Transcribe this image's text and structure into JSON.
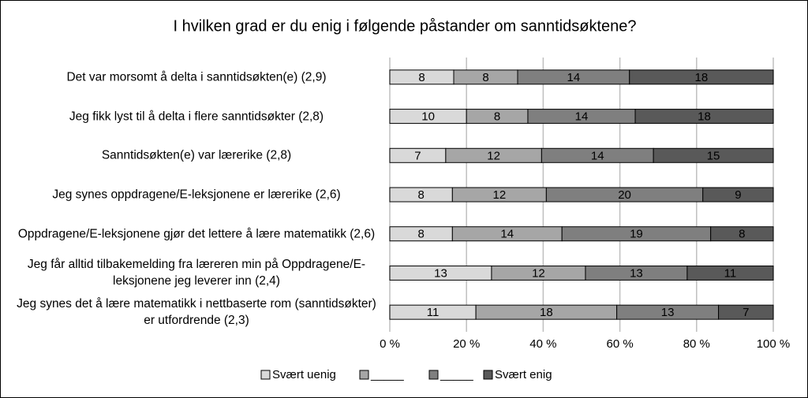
{
  "chart_data": {
    "type": "stacked_percent_bar",
    "orientation": "horizontal",
    "title": "I hvilken grad er du enig i følgende påstander om sanntidsøktene?",
    "categories": [
      "Det var morsomt å delta i sanntidsøkten(e) (2,9)",
      "Jeg fikk lyst til å delta i flere sanntidsøkter (2,8)",
      "Sanntidsøkten(e) var lærerike (2,8)",
      "Jeg synes oppdragene/E-leksjonene er lærerike (2,6)",
      "Oppdragene/E-leksjonene gjør det lettere å lære matematikk (2,6)",
      "Jeg får alltid tilbakemelding fra læreren min på Oppdragene/E-leksjonene jeg leverer inn (2,4)",
      "Jeg synes det å lære matematikk i nettbaserte rom (sanntidsøkter) er utfordrende (2,3)"
    ],
    "series": [
      {
        "name": "Svært uenig",
        "color": "#d9d9d9",
        "values": [
          8,
          10,
          7,
          8,
          8,
          13,
          11
        ]
      },
      {
        "name": "_____",
        "color": "#a6a6a6",
        "values": [
          8,
          8,
          12,
          12,
          14,
          12,
          18
        ]
      },
      {
        "name": "_____",
        "color": "#7f7f7f",
        "values": [
          14,
          14,
          14,
          20,
          19,
          13,
          13
        ]
      },
      {
        "name": "Svært enig",
        "color": "#595959",
        "values": [
          18,
          18,
          15,
          9,
          8,
          11,
          7
        ]
      }
    ],
    "xlim": [
      0,
      100
    ],
    "xticks": [
      {
        "value": 0,
        "label": "0 %"
      },
      {
        "value": 20,
        "label": "20 %"
      },
      {
        "value": 40,
        "label": "40 %"
      },
      {
        "value": 60,
        "label": "60 %"
      },
      {
        "value": 80,
        "label": "80 %"
      },
      {
        "value": 100,
        "label": "100 %"
      }
    ],
    "grid": true,
    "legend": "bottom"
  }
}
